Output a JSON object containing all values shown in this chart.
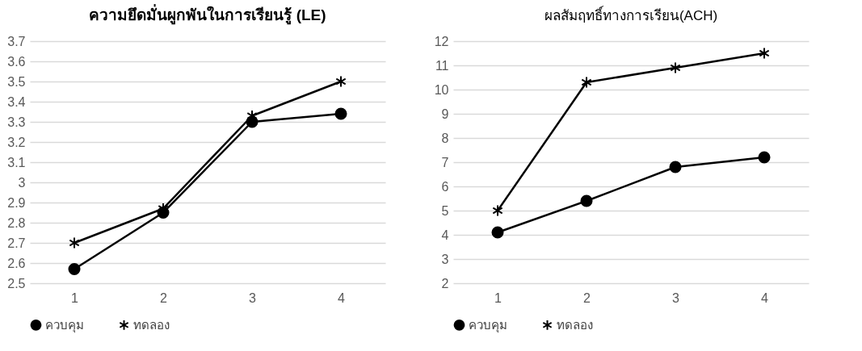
{
  "chart_data": [
    {
      "type": "line",
      "title": "ความยึดมั่นผูกพันในการเรียนรู้ (LE)",
      "categories": [
        "1",
        "2",
        "3",
        "4"
      ],
      "series": [
        {
          "name": "ควบคุม",
          "color": "#000000",
          "marker": "circle",
          "values": [
            2.57,
            2.85,
            3.3,
            3.34
          ]
        },
        {
          "name": "ทดลอง",
          "color": "#000000",
          "marker": "cross",
          "values": [
            2.7,
            2.87,
            3.33,
            3.5
          ]
        }
      ],
      "ylim": [
        2.5,
        3.7
      ],
      "yticks": [
        2.5,
        2.6,
        2.7,
        2.8,
        2.9,
        3,
        3.1,
        3.2,
        3.3,
        3.4,
        3.5,
        3.6,
        3.7
      ],
      "grid": "y",
      "legend": "bottom",
      "line_style": "solid"
    },
    {
      "type": "line",
      "title": "ผลสัมฤทธิ์ทางการเรียน(ACH)",
      "categories": [
        "1",
        "2",
        "3",
        "4"
      ],
      "series": [
        {
          "name": "ควบคุม",
          "color": "#000000",
          "marker": "circle",
          "values": [
            4.1,
            5.4,
            6.8,
            7.2
          ]
        },
        {
          "name": "ทดลอง",
          "color": "#000000",
          "marker": "cross",
          "values": [
            5.0,
            10.3,
            10.9,
            11.5
          ]
        }
      ],
      "ylim": [
        2,
        12
      ],
      "yticks": [
        2,
        3,
        4,
        5,
        6,
        7,
        8,
        9,
        10,
        11,
        12
      ],
      "grid": "y",
      "legend": "bottom",
      "line_style": "solid"
    }
  ]
}
